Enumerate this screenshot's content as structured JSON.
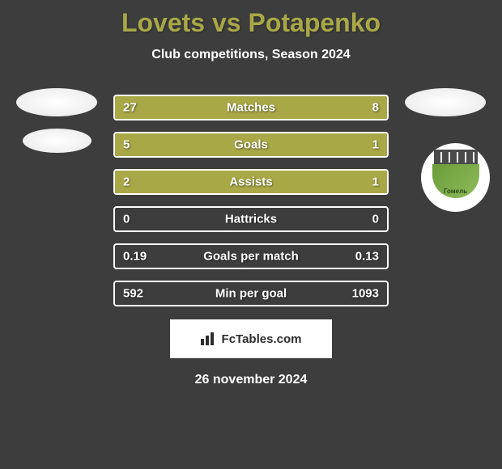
{
  "title": "Lovets vs Potapenko",
  "subtitle": "Club competitions, Season 2024",
  "date": "26 november 2024",
  "footer": "FcTables.com",
  "colors": {
    "accent": "#a9a847",
    "background": "#3d3d3d",
    "text": "#ffffff",
    "border": "#ffffff",
    "footer_bg": "#ffffff",
    "footer_text": "#2d2d2d"
  },
  "stats": [
    {
      "label": "Matches",
      "left_value": "27",
      "right_value": "8",
      "left_pct": 77,
      "right_pct": 23
    },
    {
      "label": "Goals",
      "left_value": "5",
      "right_value": "1",
      "left_pct": 83,
      "right_pct": 17
    },
    {
      "label": "Assists",
      "left_value": "2",
      "right_value": "1",
      "left_pct": 67,
      "right_pct": 33
    },
    {
      "label": "Hattricks",
      "left_value": "0",
      "right_value": "0",
      "left_pct": 0,
      "right_pct": 0
    },
    {
      "label": "Goals per match",
      "left_value": "0.19",
      "right_value": "0.13",
      "left_pct": 0,
      "right_pct": 0
    },
    {
      "label": "Min per goal",
      "left_value": "592",
      "right_value": "1093",
      "left_pct": 0,
      "right_pct": 0
    }
  ],
  "club_right": {
    "name": "Гомель"
  }
}
